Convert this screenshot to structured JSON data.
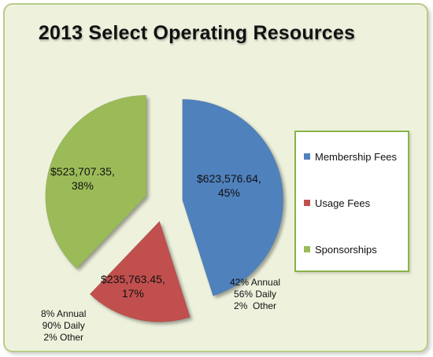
{
  "chart_data": {
    "type": "pie",
    "title": "2013 Select Operating Resources",
    "series": [
      {
        "name": "Membership Fees",
        "value": 623576.64,
        "value_label": "$623,576.64,",
        "percent_label": "45%",
        "color": "#4f81bd",
        "note": "42% Annual\n56% Daily\n2%  Other"
      },
      {
        "name": "Usage Fees",
        "value": 235763.45,
        "value_label": "$235,763.45,",
        "percent_label": "17%",
        "color": "#c0504d",
        "note": "8% Annual\n90% Daily\n2% Other"
      },
      {
        "name": "Sponsorships",
        "value": 523707.35,
        "value_label": "$523,707.35,",
        "percent_label": "38%",
        "color": "#9bbb59",
        "note": ""
      }
    ],
    "exploded": true,
    "legend_position": "right"
  }
}
